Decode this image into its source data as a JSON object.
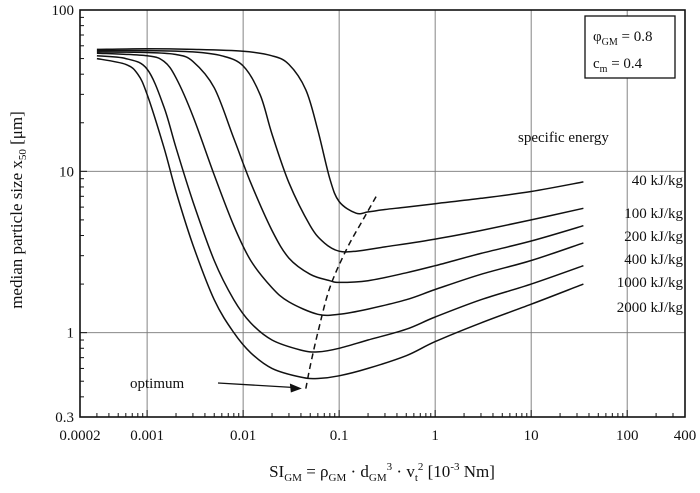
{
  "chart_data": {
    "type": "line",
    "x_scale": "log",
    "y_scale": "log",
    "xlim": [
      0.0002,
      400
    ],
    "ylim": [
      0.3,
      100
    ],
    "x_ticks": [
      {
        "value": 0.0002,
        "label": "0.0002"
      },
      {
        "value": 0.001,
        "label": "0.001"
      },
      {
        "value": 0.01,
        "label": "0.01"
      },
      {
        "value": 0.1,
        "label": "0.1"
      },
      {
        "value": 1,
        "label": "1"
      },
      {
        "value": 10,
        "label": "10"
      },
      {
        "value": 100,
        "label": "100"
      },
      {
        "value": 400,
        "label": "400"
      }
    ],
    "y_ticks": [
      {
        "value": 0.3,
        "label": "0.3"
      },
      {
        "value": 1,
        "label": "1"
      },
      {
        "value": 10,
        "label": "10"
      },
      {
        "value": 100,
        "label": "100"
      }
    ],
    "gridlines_x": [
      0.001,
      0.01,
      0.1,
      1,
      10,
      100
    ],
    "gridlines_y": [
      1,
      10
    ],
    "xlabel": {
      "main": "SI",
      "sub": "GM",
      "rest": " =  ρ",
      "rest_sub": "GM",
      "rest2": " · d",
      "rest2_sub": "GM",
      "rest2_sup": "3",
      "rest3": " · v",
      "rest3_sub": "t",
      "rest3_sup": "2",
      "units": "[10",
      "units_sup": "-3",
      "units_end": " Nm]"
    },
    "ylabel": {
      "main": "median particle size   x",
      "sub": "50",
      "units": "  [μm]"
    },
    "params_box": {
      "line1_main": "φ",
      "line1_sub": "GM",
      "line1_rest": " = 0.8",
      "line2_main": "c",
      "line2_sub": "m",
      "line2_rest": " = 0.4"
    },
    "legend_title": "specific energy",
    "series": [
      {
        "name": "40 kJ/kg",
        "x": [
          0.0003,
          0.001,
          0.003,
          0.01,
          0.02,
          0.03,
          0.045,
          0.06,
          0.08,
          0.1,
          0.15,
          0.2,
          0.3,
          0.5,
          1,
          3,
          10,
          35
        ],
        "y": [
          57,
          57.5,
          57,
          55.5,
          52,
          46,
          32,
          18,
          9,
          6.5,
          5.5,
          5.6,
          5.8,
          6.0,
          6.3,
          6.8,
          7.5,
          8.6
        ]
      },
      {
        "name": "100 kJ/kg",
        "x": [
          0.0003,
          0.001,
          0.003,
          0.006,
          0.01,
          0.015,
          0.02,
          0.03,
          0.05,
          0.07,
          0.1,
          0.15,
          0.3,
          1,
          3,
          10,
          35
        ],
        "y": [
          56,
          56,
          55,
          52,
          45,
          30,
          17,
          8.5,
          4.6,
          3.6,
          3.2,
          3.2,
          3.4,
          3.8,
          4.3,
          5.0,
          5.9
        ]
      },
      {
        "name": "200 kJ/kg",
        "x": [
          0.0003,
          0.001,
          0.002,
          0.003,
          0.005,
          0.008,
          0.012,
          0.02,
          0.03,
          0.05,
          0.08,
          0.1,
          0.2,
          0.5,
          1,
          3,
          10,
          35
        ],
        "y": [
          55,
          54.5,
          53,
          48,
          33,
          16,
          8.5,
          4.3,
          2.9,
          2.3,
          2.1,
          2.05,
          2.1,
          2.35,
          2.6,
          3.1,
          3.7,
          4.6
        ]
      },
      {
        "name": "400 kJ/kg",
        "x": [
          0.0003,
          0.001,
          0.0015,
          0.002,
          0.003,
          0.005,
          0.008,
          0.012,
          0.02,
          0.03,
          0.06,
          0.1,
          0.2,
          0.5,
          1,
          3,
          10,
          35
        ],
        "y": [
          54,
          52,
          48,
          38,
          22,
          9.5,
          4.6,
          2.8,
          1.9,
          1.55,
          1.3,
          1.3,
          1.4,
          1.6,
          1.85,
          2.3,
          2.8,
          3.6
        ]
      },
      {
        "name": "1000 kJ/kg",
        "x": [
          0.0003,
          0.0006,
          0.001,
          0.0015,
          0.002,
          0.003,
          0.005,
          0.008,
          0.012,
          0.02,
          0.04,
          0.06,
          0.1,
          0.2,
          0.5,
          1,
          3,
          10,
          35
        ],
        "y": [
          52,
          50,
          43,
          25,
          14,
          6.5,
          2.8,
          1.6,
          1.15,
          0.9,
          0.78,
          0.76,
          0.8,
          0.9,
          1.05,
          1.25,
          1.6,
          2.0,
          2.6
        ]
      },
      {
        "name": "2000 kJ/kg",
        "x": [
          0.0003,
          0.0006,
          0.0008,
          0.001,
          0.0015,
          0.002,
          0.003,
          0.005,
          0.008,
          0.012,
          0.02,
          0.04,
          0.06,
          0.1,
          0.2,
          0.5,
          1,
          3,
          10,
          35
        ],
        "y": [
          50,
          46,
          40,
          30,
          14,
          7.5,
          3.5,
          1.6,
          1.0,
          0.75,
          0.6,
          0.53,
          0.52,
          0.54,
          0.6,
          0.72,
          0.88,
          1.15,
          1.5,
          2.0
        ]
      }
    ],
    "optimum_curve": {
      "x": [
        0.045,
        0.05,
        0.06,
        0.08,
        0.12,
        0.18,
        0.25
      ],
      "y": [
        0.45,
        0.62,
        1.0,
        1.9,
        3.3,
        5.1,
        7.2
      ],
      "style": "dashed"
    },
    "annotation": {
      "text": "optimum",
      "points_to_x": 0.045,
      "points_to_y": 0.52
    }
  }
}
